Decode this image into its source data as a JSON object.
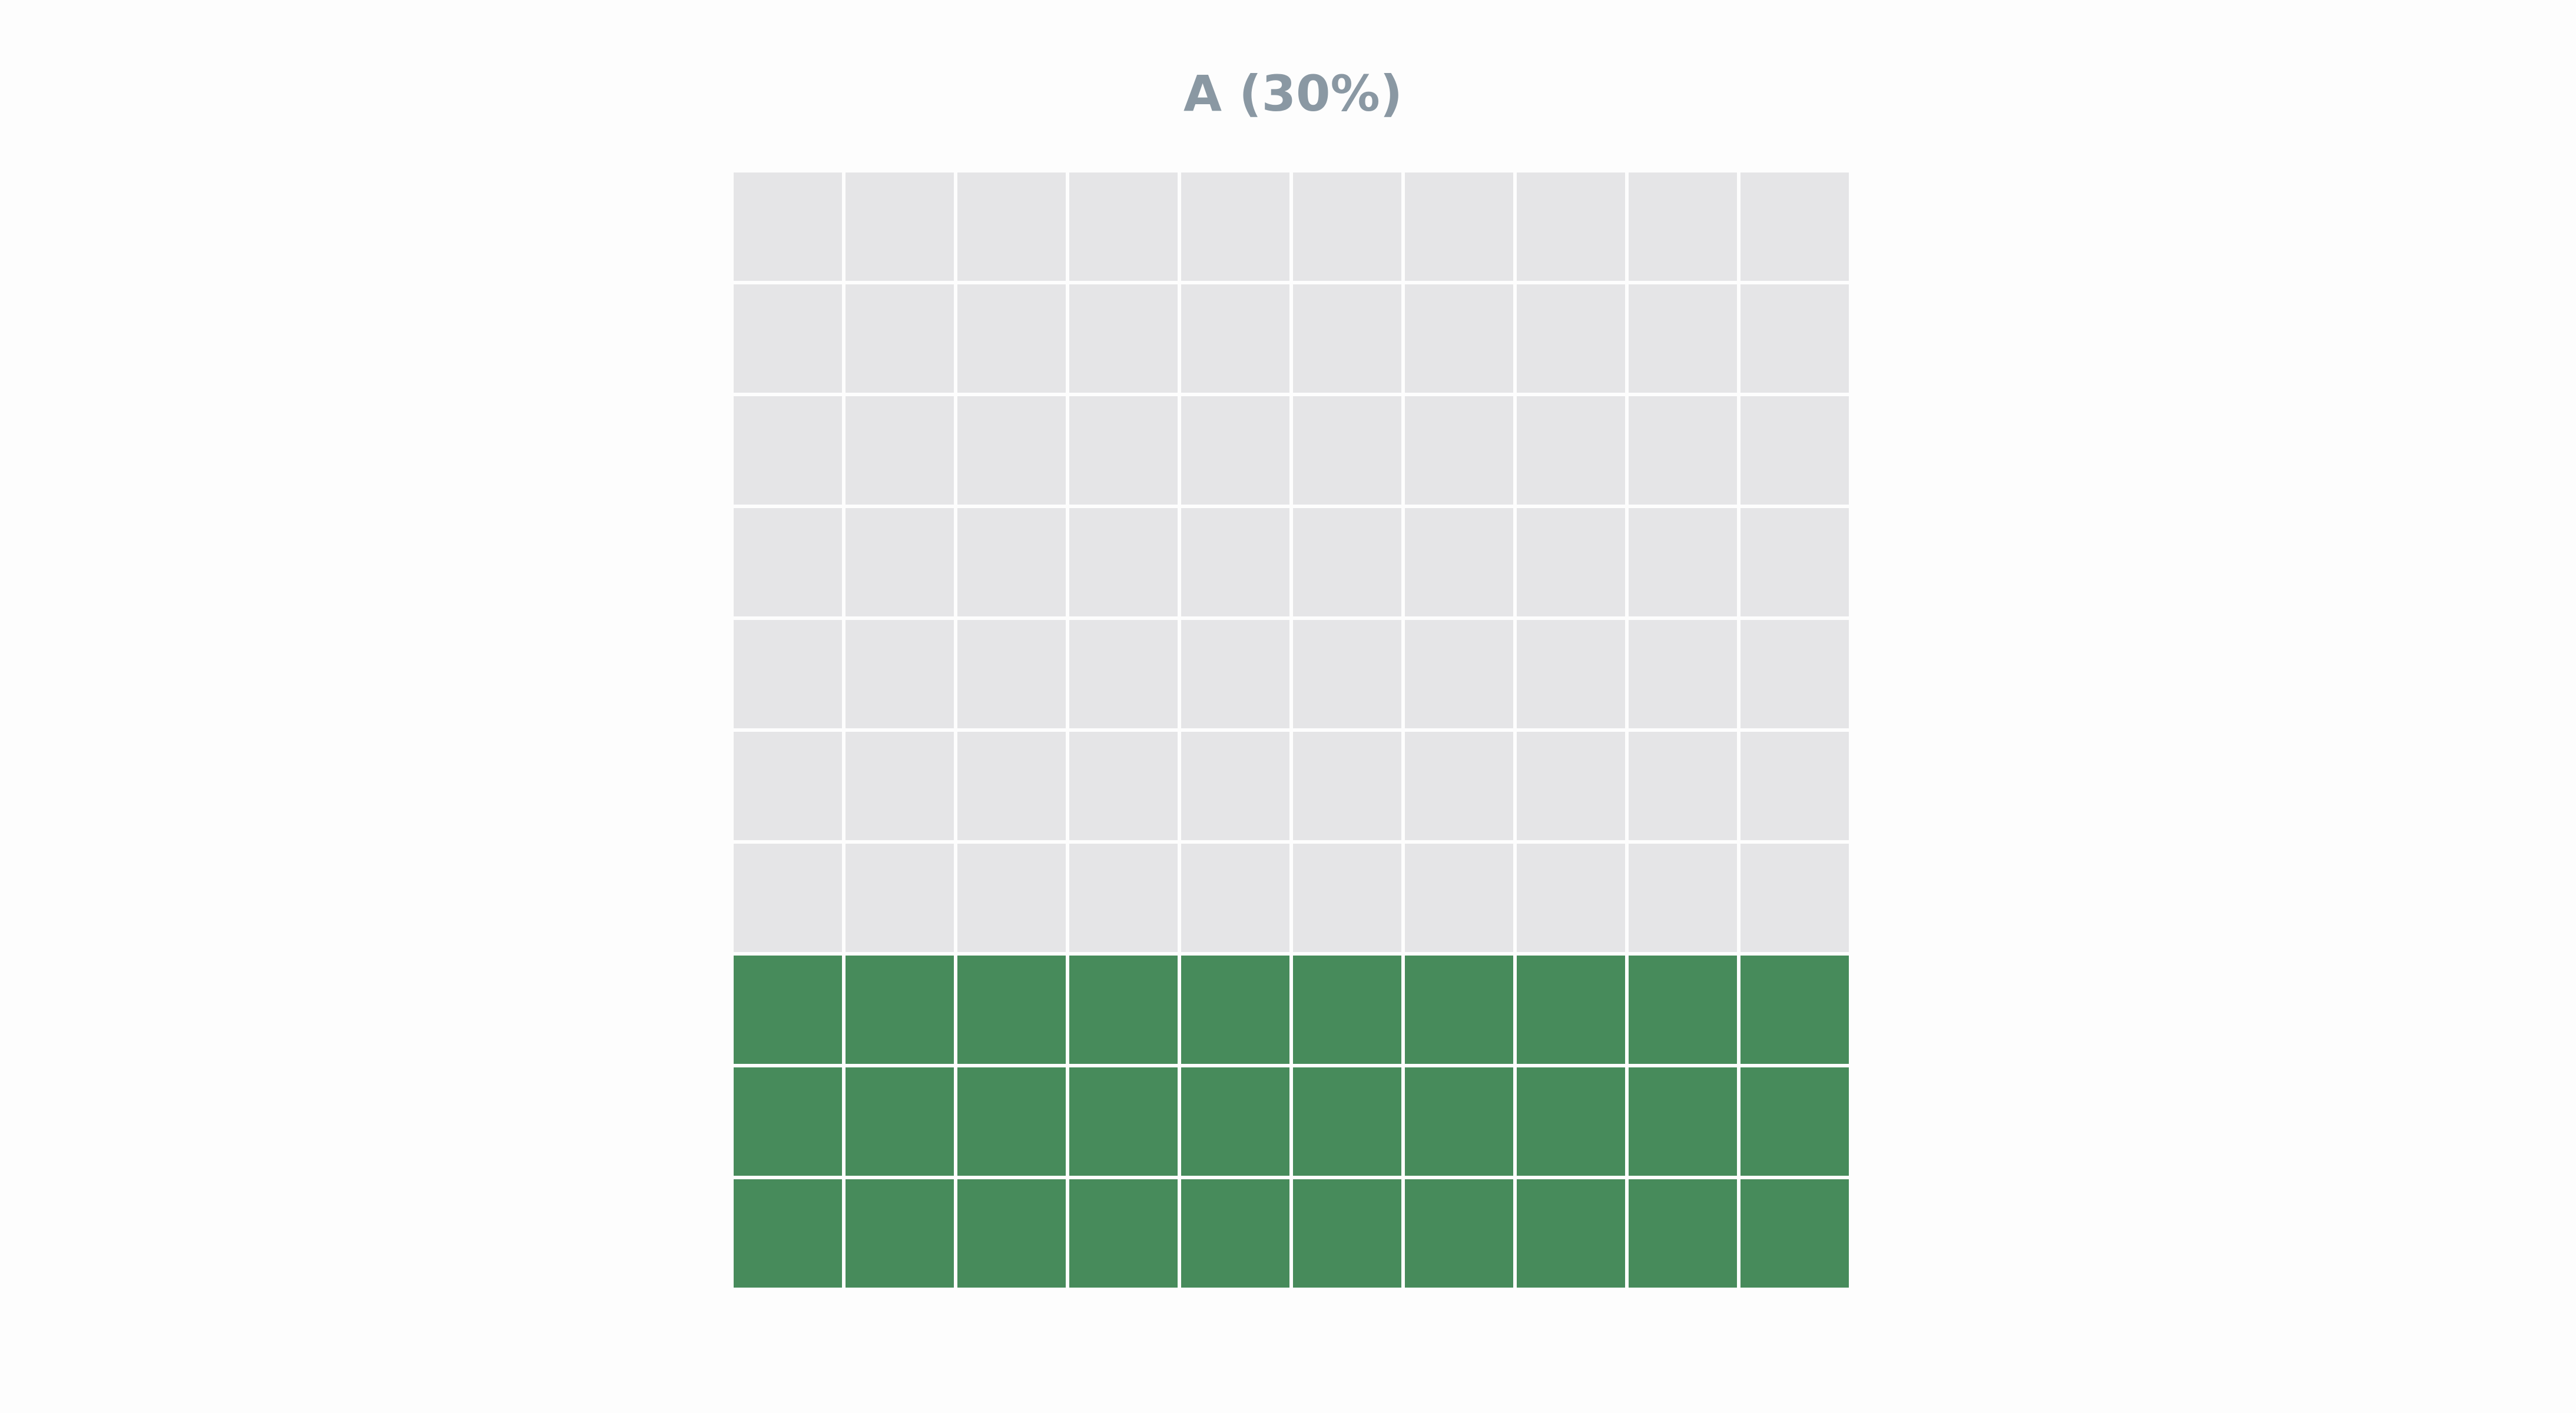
{
  "chart_data": {
    "type": "waffle",
    "title": "A (30%)",
    "category": "A",
    "percent": 30,
    "total_cells": 100,
    "rows": 10,
    "columns": 10,
    "filled_cells": 30,
    "fill_order": "bottom-up",
    "colors": {
      "filled": "#478b5b",
      "empty": "#e5e5e7",
      "title": "#8a98a3",
      "cell_border": "#ffffff",
      "background": "#fdfdfd"
    }
  }
}
